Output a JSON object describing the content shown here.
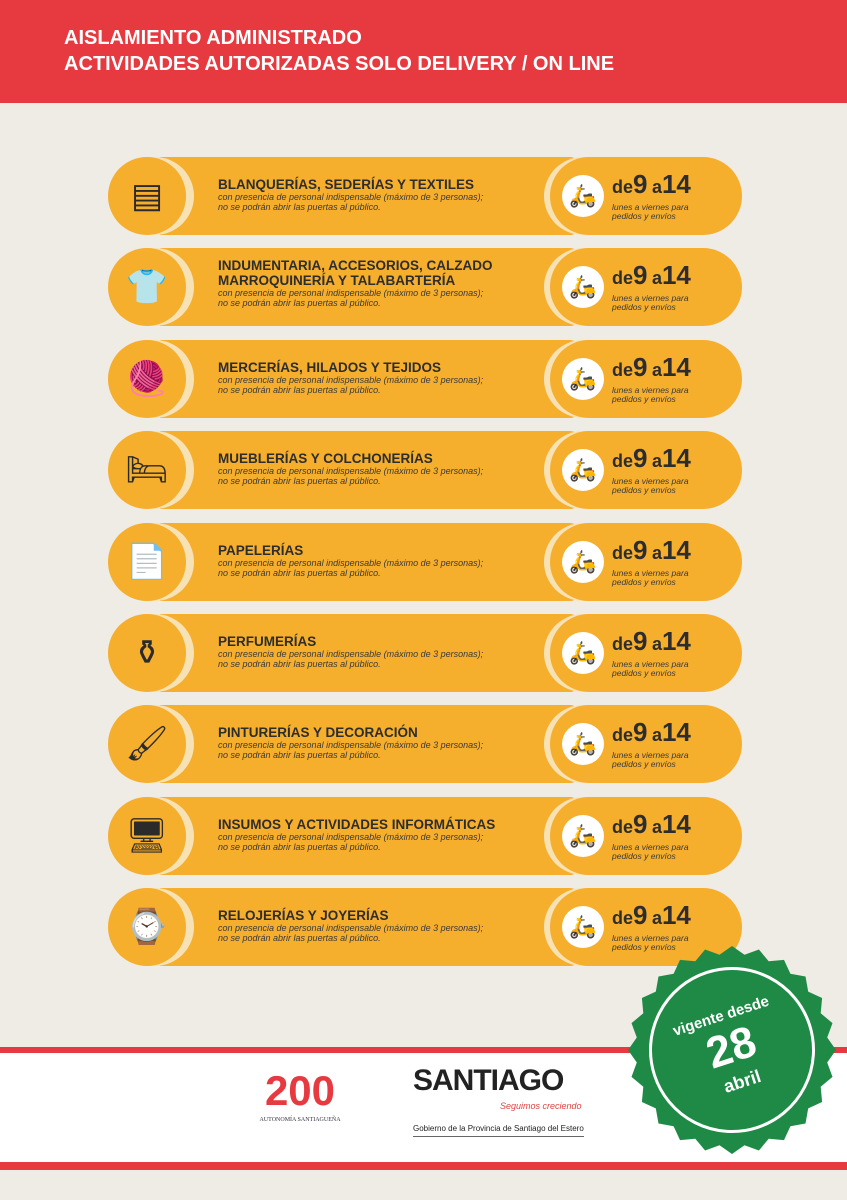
{
  "header": {
    "line1": "AISLAMIENTO ADMINISTRADO",
    "line2": "ACTIVIDADES AUTORIZADAS SOLO DELIVERY / ON LINE"
  },
  "common": {
    "subtitle_1": "con presencia de personal indispensable (máximo de 3 personas);",
    "subtitle_2": "no se podrán abrir las puertas al público.",
    "de": "de",
    "from": "9",
    "a": "a",
    "to": "14",
    "days_1": "lunes a viernes para",
    "days_2": "pedidos y envíos"
  },
  "items": [
    {
      "title": "BLANQUERÍAS, SEDERÍAS Y TEXTILES",
      "icon": "towels-icon",
      "glyph": "▤"
    },
    {
      "title": "INDUMENTARIA, ACCESORIOS, CALZADO MARROQUINERÍA Y TALABARTERÍA",
      "icon": "clothing-icon",
      "glyph": "👕"
    },
    {
      "title": "MERCERÍAS, HILADOS Y TEJIDOS",
      "icon": "yarn-icon",
      "glyph": "🧶"
    },
    {
      "title": "MUEBLERÍAS Y COLCHONERÍAS",
      "icon": "bed-icon",
      "glyph": "🛏"
    },
    {
      "title": "PAPELERÍAS",
      "icon": "paper-icon",
      "glyph": "📄"
    },
    {
      "title": "PERFUMERÍAS",
      "icon": "perfume-icon",
      "glyph": "⚱"
    },
    {
      "title": "PINTURERÍAS Y DECORACIÓN",
      "icon": "paintbrush-icon",
      "glyph": "🖌"
    },
    {
      "title": "INSUMOS Y ACTIVIDADES INFORMÁTICAS",
      "icon": "computer-icon",
      "glyph": "🖥"
    },
    {
      "title": "RELOJERÍAS Y JOYERÍAS",
      "icon": "watch-icon",
      "glyph": "⌚"
    }
  ],
  "footer": {
    "bicentenario": "AUTONOMÍA SANTIAGUEÑA",
    "bicentenario_num": "200",
    "santiago": "SANTIAGO",
    "slogan": "Seguimos creciendo",
    "gobierno": "Gobierno de la Provincia de Santiago del Estero"
  },
  "seal": {
    "vigente": "vigente desde",
    "day": "28",
    "month": "abril",
    "color": "#1f8a45"
  },
  "colors": {
    "red": "#e63a40",
    "orange": "#f6ae2d",
    "background": "#efece6"
  }
}
